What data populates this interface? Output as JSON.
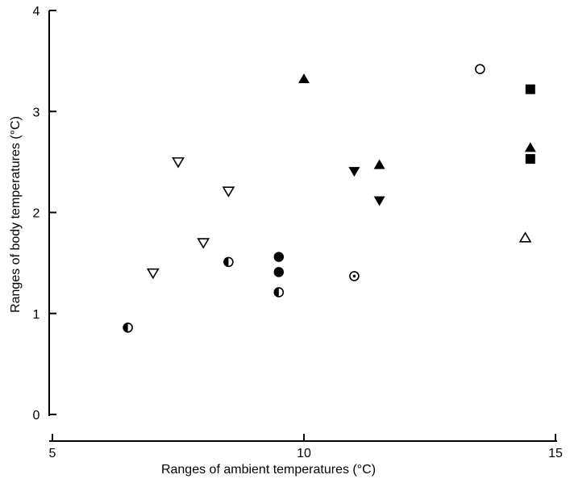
{
  "chart_data": {
    "type": "scatter",
    "title": "",
    "xlabel": "Ranges of ambient temperatures (°C)",
    "ylabel": "Ranges of body temperatures (°C)",
    "xlim": [
      5,
      15
    ],
    "ylim": [
      0,
      4
    ],
    "xticks": [
      "5",
      "10",
      "15"
    ],
    "yticks": [
      "0",
      "1",
      "2",
      "3",
      "4"
    ],
    "grid": false,
    "legend": "none",
    "series": [
      {
        "marker": "half-filled-circle",
        "points": [
          {
            "x": 6.5,
            "y": 0.86
          },
          {
            "x": 8.5,
            "y": 1.51
          },
          {
            "x": 9.5,
            "y": 1.21
          }
        ]
      },
      {
        "marker": "open-triangle-down",
        "points": [
          {
            "x": 7.0,
            "y": 1.4
          },
          {
            "x": 7.5,
            "y": 2.5
          },
          {
            "x": 8.0,
            "y": 1.7
          },
          {
            "x": 8.5,
            "y": 2.21
          }
        ]
      },
      {
        "marker": "filled-circle",
        "points": [
          {
            "x": 9.5,
            "y": 1.56
          },
          {
            "x": 9.5,
            "y": 1.41
          }
        ]
      },
      {
        "marker": "filled-triangle-up",
        "points": [
          {
            "x": 10.0,
            "y": 3.32
          },
          {
            "x": 11.5,
            "y": 2.47
          },
          {
            "x": 14.5,
            "y": 2.64
          }
        ]
      },
      {
        "marker": "filled-triangle-down",
        "points": [
          {
            "x": 11.0,
            "y": 2.41
          },
          {
            "x": 11.5,
            "y": 2.12
          }
        ]
      },
      {
        "marker": "dotted-circle",
        "points": [
          {
            "x": 11.0,
            "y": 1.37
          }
        ]
      },
      {
        "marker": "open-circle",
        "points": [
          {
            "x": 13.5,
            "y": 3.42
          }
        ]
      },
      {
        "marker": "filled-square",
        "points": [
          {
            "x": 14.5,
            "y": 3.22
          },
          {
            "x": 14.5,
            "y": 2.53
          }
        ]
      },
      {
        "marker": "open-triangle-up",
        "points": [
          {
            "x": 14.4,
            "y": 1.75
          }
        ]
      }
    ]
  }
}
